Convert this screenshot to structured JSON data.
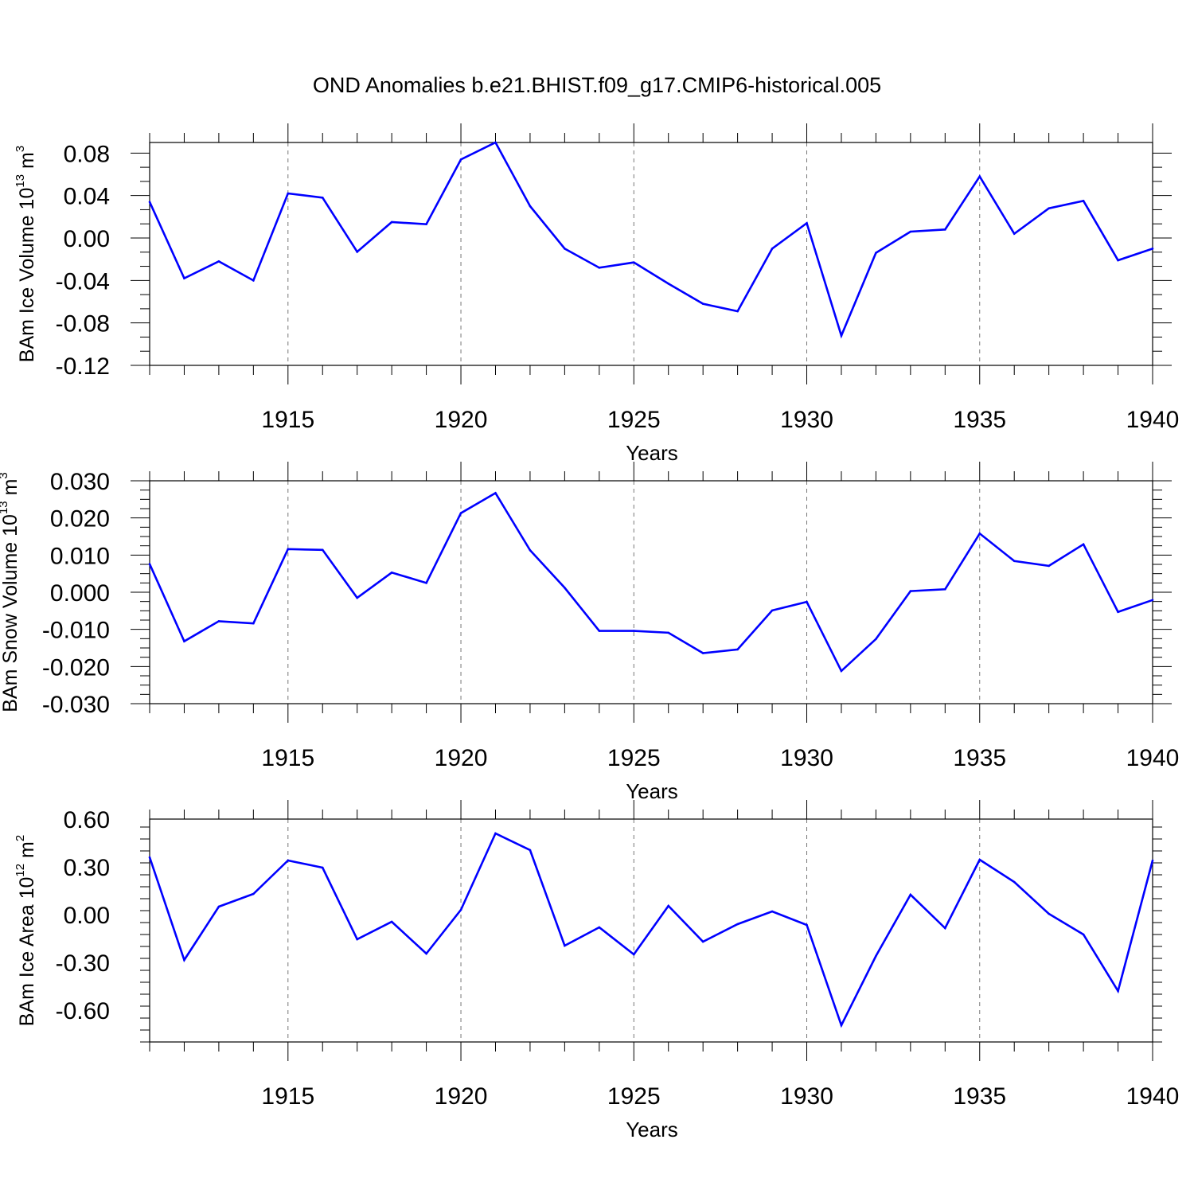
{
  "title": "OND Anomalies b.e21.BHIST.f09_g17.CMIP6-historical.005",
  "line_color": "#0000ff",
  "chart_data": [
    {
      "type": "line",
      "ylabel": {
        "text": "BAm Ice Volume 10",
        "exponent": "13",
        "unit": " m",
        "unit_exponent": "3"
      },
      "xlabel": "Years",
      "xlim": [
        1911,
        1940
      ],
      "ylim": [
        -0.12,
        0.09
      ],
      "yticks": [
        0.08,
        0.04,
        0.0,
        -0.04,
        -0.08,
        -0.12
      ],
      "ytick_labels": [
        "0.08",
        "0.04",
        "0.00",
        "-0.04",
        "-0.08",
        "-0.12"
      ],
      "xticks": [
        1915,
        1920,
        1925,
        1930,
        1935,
        1940
      ],
      "xtick_labels": [
        "1915",
        "1920",
        "1925",
        "1930",
        "1935",
        "1940"
      ],
      "series": [
        {
          "name": "BAm Ice Volume",
          "x": [
            1911,
            1912,
            1913,
            1914,
            1915,
            1916,
            1917,
            1918,
            1919,
            1920,
            1921,
            1922,
            1923,
            1924,
            1925,
            1926,
            1927,
            1928,
            1929,
            1930,
            1931,
            1932,
            1933,
            1934,
            1935,
            1936,
            1937,
            1938,
            1939,
            1940
          ],
          "values": [
            0.034,
            -0.038,
            -0.022,
            -0.04,
            0.042,
            0.038,
            -0.013,
            0.015,
            0.013,
            0.074,
            0.09,
            0.03,
            -0.01,
            -0.028,
            -0.023,
            -0.043,
            -0.062,
            -0.069,
            -0.01,
            0.014,
            -0.092,
            -0.014,
            0.006,
            0.008,
            0.058,
            0.004,
            0.028,
            0.035,
            -0.021,
            -0.01
          ]
        }
      ]
    },
    {
      "type": "line",
      "ylabel": {
        "text": "BAm Snow Volume 10",
        "exponent": "13",
        "unit": " m",
        "unit_exponent": "3"
      },
      "xlabel": "Years",
      "xlim": [
        1911,
        1940
      ],
      "ylim": [
        -0.03,
        0.03
      ],
      "yticks": [
        0.03,
        0.02,
        0.01,
        0.0,
        -0.01,
        -0.02,
        -0.03
      ],
      "ytick_labels": [
        "0.030",
        "0.020",
        "0.010",
        "0.000",
        "-0.010",
        "-0.020",
        "-0.030"
      ],
      "xticks": [
        1915,
        1920,
        1925,
        1930,
        1935,
        1940
      ],
      "xtick_labels": [
        "1915",
        "1920",
        "1925",
        "1930",
        "1935",
        "1940"
      ],
      "series": [
        {
          "name": "BAm Snow Volume",
          "x": [
            1911,
            1912,
            1913,
            1914,
            1915,
            1916,
            1917,
            1918,
            1919,
            1920,
            1921,
            1922,
            1923,
            1924,
            1925,
            1926,
            1927,
            1928,
            1929,
            1930,
            1931,
            1932,
            1933,
            1934,
            1935,
            1936,
            1937,
            1938,
            1939,
            1940
          ],
          "values": [
            0.0076,
            -0.0132,
            -0.0078,
            -0.0084,
            0.0116,
            0.0114,
            -0.0015,
            0.0053,
            0.0025,
            0.0213,
            0.0267,
            0.0113,
            0.0012,
            -0.0104,
            -0.0104,
            -0.0109,
            -0.0164,
            -0.0154,
            -0.0049,
            -0.0026,
            -0.0212,
            -0.0126,
            0.0003,
            0.0008,
            0.0158,
            0.0084,
            0.0071,
            0.0129,
            -0.0053,
            -0.0021
          ]
        }
      ]
    },
    {
      "type": "line",
      "ylabel": {
        "text": "BAm Ice Area 10",
        "exponent": "12",
        "unit": " m",
        "unit_exponent": "2"
      },
      "xlabel": "Years",
      "xlim": [
        1911,
        1940
      ],
      "ylim": [
        -0.8,
        0.6
      ],
      "yticks": [
        0.6,
        0.3,
        0.0,
        -0.3,
        -0.6
      ],
      "ytick_labels": [
        "0.60",
        "0.30",
        "0.00",
        "-0.30",
        "-0.60"
      ],
      "xticks": [
        1915,
        1920,
        1925,
        1930,
        1935,
        1940
      ],
      "xtick_labels": [
        "1915",
        "1920",
        "1925",
        "1930",
        "1935",
        "1940"
      ],
      "series": [
        {
          "name": "BAm Ice Area",
          "x": [
            1911,
            1912,
            1913,
            1914,
            1915,
            1916,
            1917,
            1918,
            1919,
            1920,
            1921,
            1922,
            1923,
            1924,
            1925,
            1926,
            1927,
            1928,
            1929,
            1930,
            1931,
            1932,
            1933,
            1934,
            1935,
            1936,
            1937,
            1938,
            1939,
            1940
          ],
          "values": [
            0.36,
            -0.285,
            0.05,
            0.13,
            0.34,
            0.295,
            -0.155,
            -0.045,
            -0.245,
            0.03,
            0.51,
            0.405,
            -0.195,
            -0.08,
            -0.25,
            0.055,
            -0.17,
            -0.06,
            0.02,
            -0.065,
            -0.695,
            -0.26,
            0.125,
            -0.085,
            0.345,
            0.205,
            0.005,
            -0.125,
            -0.48,
            0.34
          ]
        }
      ]
    }
  ]
}
